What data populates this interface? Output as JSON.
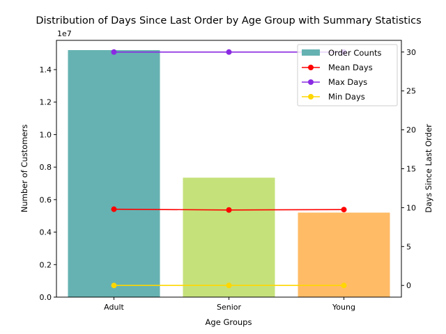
{
  "chart_data": {
    "type": "bar+line",
    "title": "Distribution of Days Since Last Order by Age Group with Summary Statistics",
    "xlabel": "Age Groups",
    "ylabel_left": "Number of Customers",
    "ylabel_right": "Days Since Last Order",
    "left_axis_multiplier": "1e7",
    "categories": [
      "Adult",
      "Senior",
      "Young"
    ],
    "left_ylim": [
      0,
      15800000
    ],
    "left_ticks": [
      0,
      2000000,
      4000000,
      6000000,
      8000000,
      10000000,
      12000000,
      14000000
    ],
    "left_tick_labels": [
      "0.0",
      "0.2",
      "0.4",
      "0.6",
      "0.8",
      "1.0",
      "1.2",
      "1.4"
    ],
    "right_ylim": [
      -1.5,
      31.5
    ],
    "right_ticks": [
      0,
      5,
      10,
      15,
      20,
      25,
      30
    ],
    "right_tick_labels": [
      "0",
      "5",
      "10",
      "15",
      "20",
      "25",
      "30"
    ],
    "bars": {
      "name": "Order Counts",
      "values": [
        15200000,
        7350000,
        5200000
      ],
      "colors": [
        "#66b2b2",
        "#c5e17a",
        "#ffbb66"
      ]
    },
    "series": [
      {
        "name": "Mean Days",
        "color": "#ff0000",
        "values": [
          9.8,
          9.7,
          9.75
        ]
      },
      {
        "name": "Max Days",
        "color": "#8a2be2",
        "values": [
          30,
          30,
          30
        ]
      },
      {
        "name": "Min Days",
        "color": "#ffd700",
        "values": [
          0,
          0,
          0
        ]
      }
    ],
    "legend_position": "top-right",
    "grid": false
  }
}
